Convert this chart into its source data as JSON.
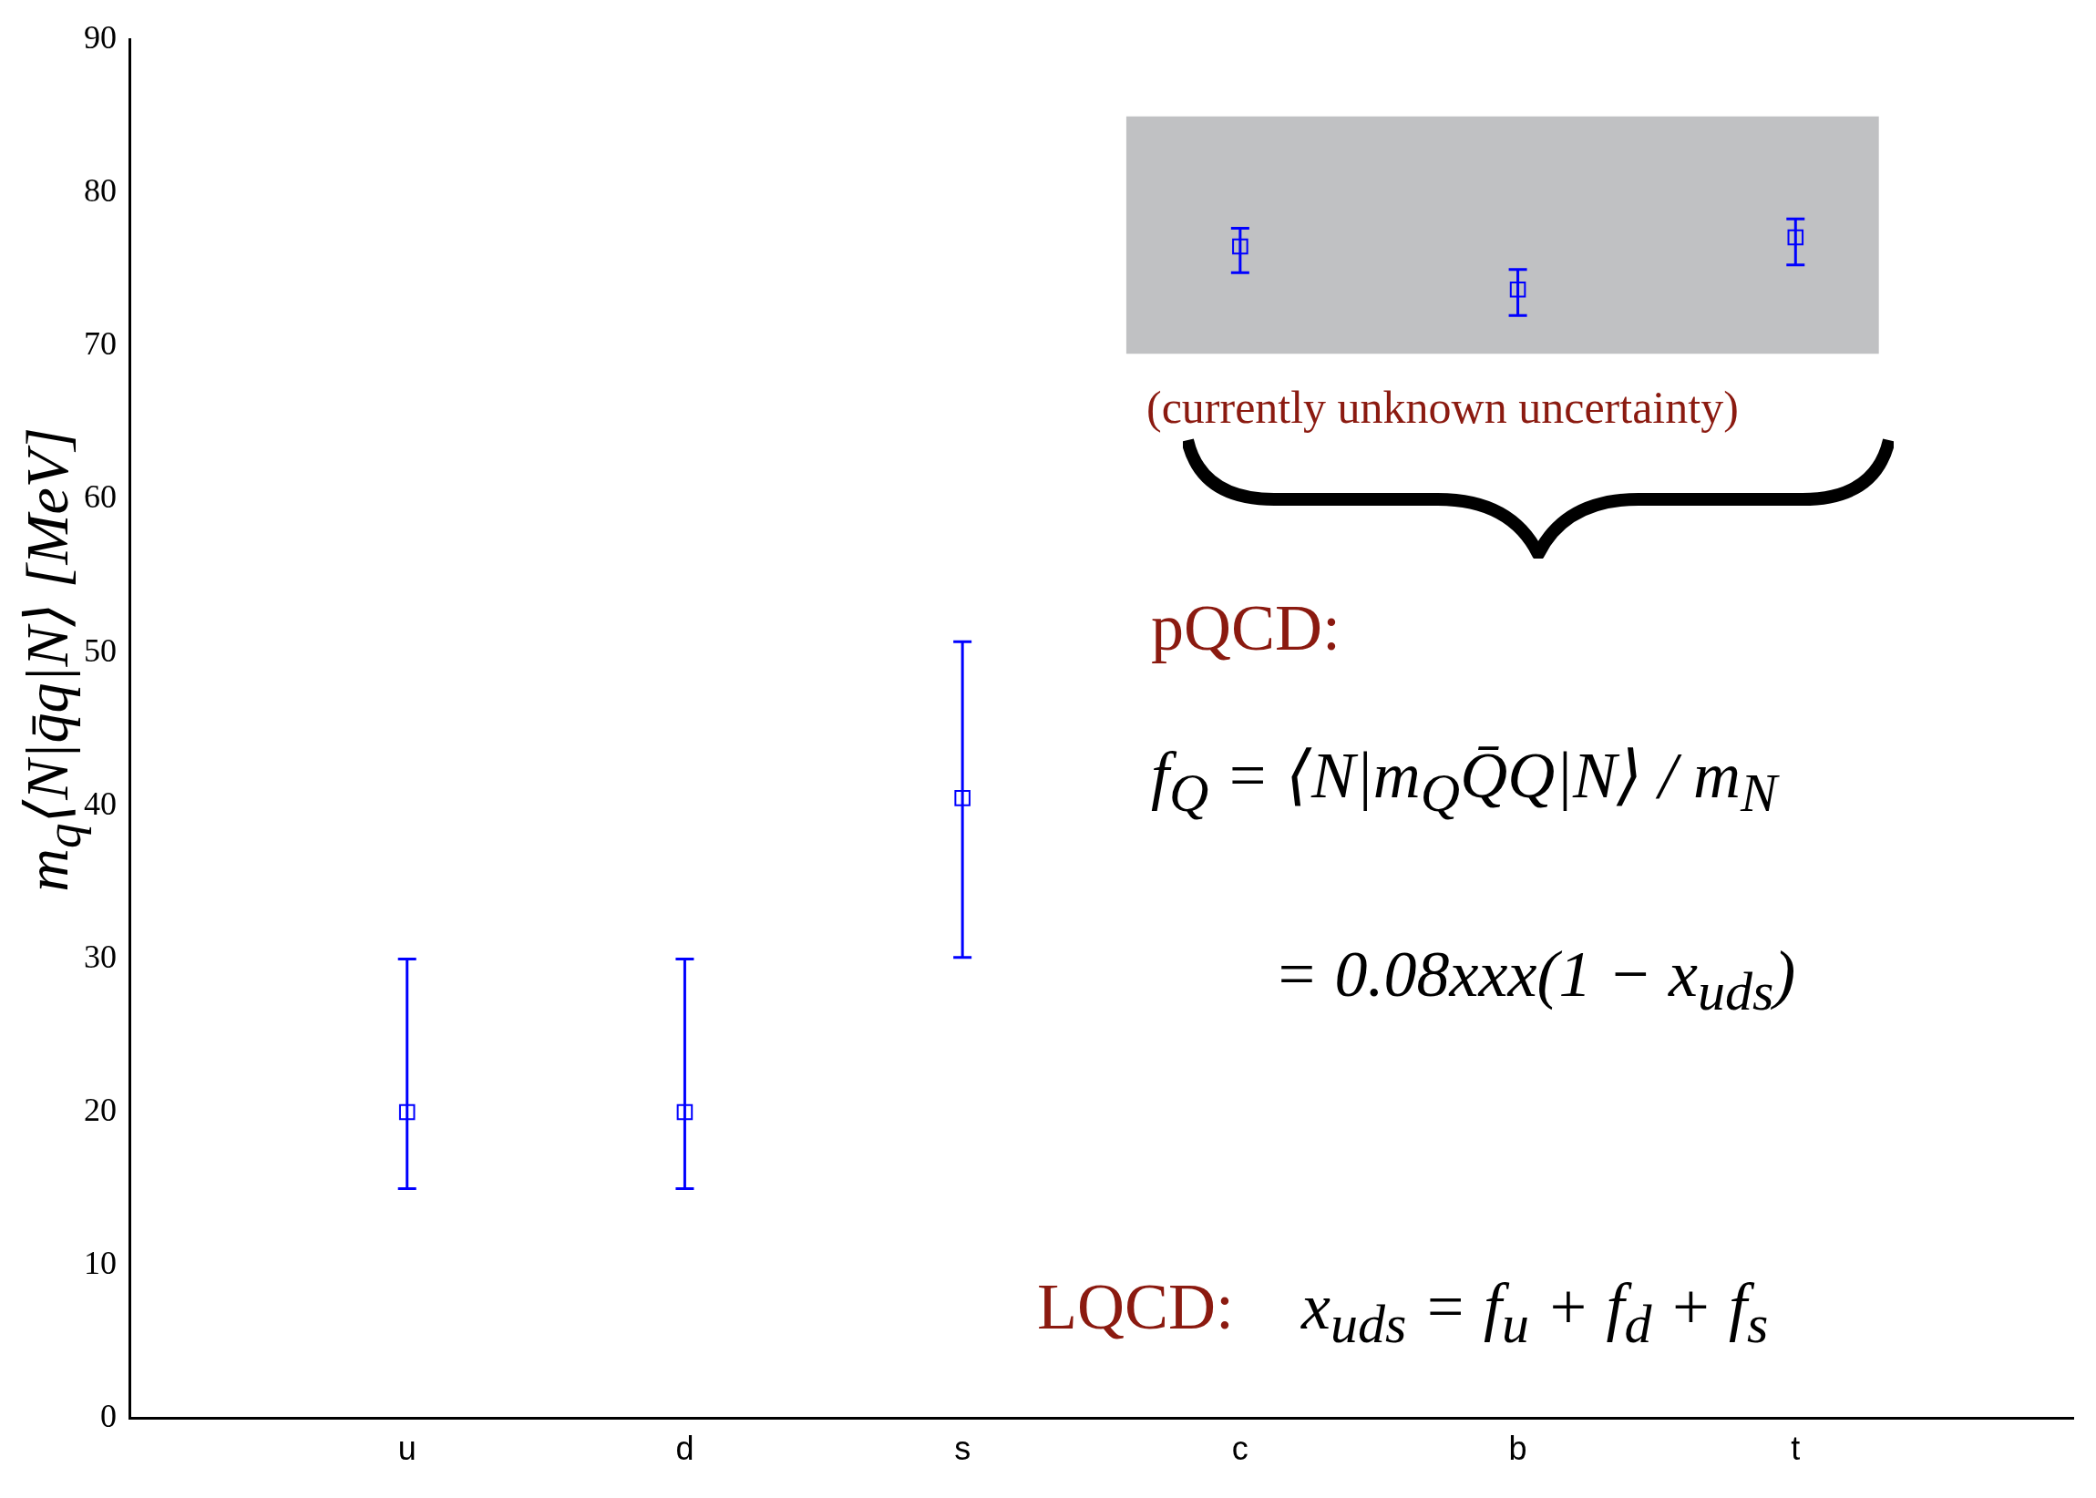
{
  "chart_data": {
    "type": "scatter",
    "ylabel": "m$_{q}$⟨N|q̄q|N⟩ [MeV]",
    "categories": [
      "u",
      "d",
      "s",
      "c",
      "b",
      "t"
    ],
    "series": [
      {
        "color": "#0000ff",
        "values": [
          20,
          20,
          40.5,
          76.5,
          73.7,
          77.1
        ],
        "errors": [
          [
            15,
            30
          ],
          [
            15,
            30
          ],
          [
            30.1,
            50.7
          ],
          [
            74.8,
            77.7
          ],
          [
            72,
            75
          ],
          [
            75.3,
            78.3
          ]
        ]
      }
    ],
    "marker": "square",
    "ylim": [
      0,
      90
    ],
    "yticks": [
      0,
      10,
      20,
      30,
      40,
      50,
      60,
      70,
      80,
      90
    ],
    "grid": false,
    "legend": false,
    "bands": [
      {
        "axis": "y",
        "from": 69.5,
        "to": 85,
        "label": "(currently unknown uncertainty)",
        "color": "#c0c1c3"
      }
    ],
    "annotations": [
      "pQCD:",
      "f$_{Q}$ = ⟨N|m$_{Q}$Q̄Q|N⟩ / m$_{N}$",
      "= 0.08xxx(1 − x$_{uds}$)",
      "LQCD:",
      "x$_{uds}$ = f$_{u}$ + f$_{d}$ + f$_{s}$"
    ]
  }
}
